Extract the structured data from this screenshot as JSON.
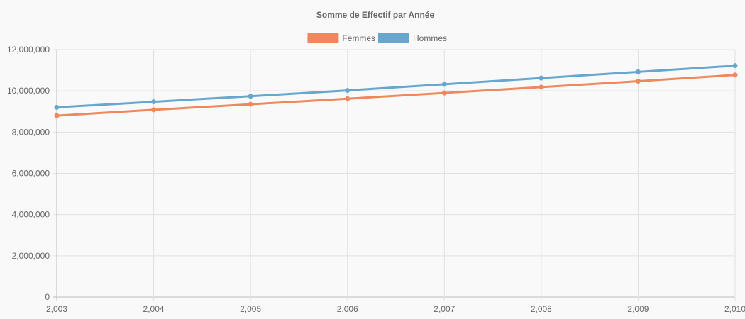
{
  "chart_data": {
    "type": "line",
    "title": "Somme de Effectif par Année",
    "xlabel": "",
    "ylabel": "",
    "x": [
      2003,
      2004,
      2005,
      2006,
      2007,
      2008,
      2009,
      2010
    ],
    "x_tick_labels": [
      "2,003",
      "2,004",
      "2,005",
      "2,006",
      "2,007",
      "2,008",
      "2,009",
      "2,010"
    ],
    "ylim": [
      0,
      12000000
    ],
    "y_tick_values": [
      0,
      2000000,
      4000000,
      6000000,
      8000000,
      10000000,
      12000000
    ],
    "y_tick_labels": [
      "0",
      "2,000,000",
      "4,000,000",
      "6,000,000",
      "8,000,000",
      "10,000,000",
      "12,000,000"
    ],
    "grid": true,
    "legend_position": "top-center",
    "series": [
      {
        "name": "Femmes",
        "color": "#f0885e",
        "values": [
          8800000,
          9080000,
          9350000,
          9620000,
          9900000,
          10180000,
          10470000,
          10770000
        ]
      },
      {
        "name": "Hommes",
        "color": "#67a7ce",
        "values": [
          9200000,
          9470000,
          9740000,
          10020000,
          10320000,
          10620000,
          10920000,
          11220000
        ]
      }
    ]
  }
}
